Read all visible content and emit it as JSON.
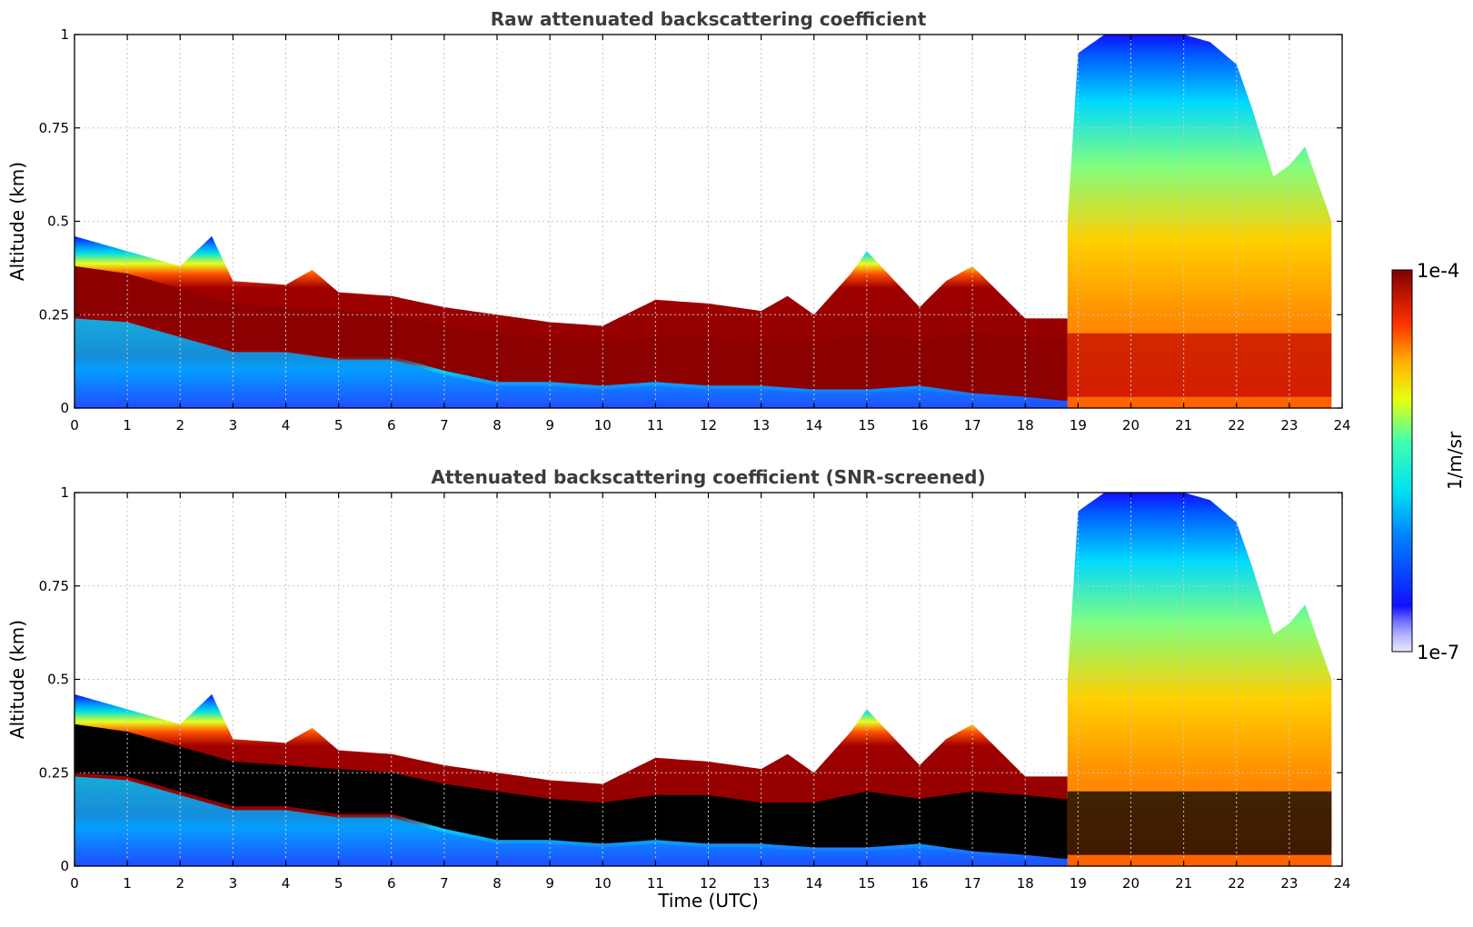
{
  "figure": {
    "colorbar": {
      "max_label": "1e-4",
      "min_label": "1e-7",
      "unit_label": "1/m/sr",
      "colormap": "jet",
      "low_colors": [
        "#e8e8ff",
        "#c8c8ff",
        "#a8a8ff",
        "#8080ff"
      ]
    }
  },
  "chart_data": [
    {
      "type": "heatmap",
      "title": "Raw attenuated backscattering coefficient",
      "xlabel": "",
      "ylabel": "Altitude (km)",
      "xlim": [
        0,
        24
      ],
      "ylim": [
        0,
        1
      ],
      "xticks": [
        "0",
        "1",
        "2",
        "3",
        "4",
        "5",
        "6",
        "7",
        "8",
        "9",
        "10",
        "11",
        "12",
        "13",
        "14",
        "15",
        "16",
        "17",
        "18",
        "19",
        "20",
        "21",
        "22",
        "23",
        "24"
      ],
      "yticks": [
        "0",
        "0.25",
        "0.5",
        "0.75",
        "1"
      ],
      "grid": true,
      "colorscale": "log10 1/m/sr, 1e-7 to 1e-4",
      "boundary_layer_top_km": {
        "time_utc": [
          0,
          0.5,
          1,
          2,
          2.6,
          3,
          4,
          4.5,
          5,
          6,
          7,
          8,
          9,
          10,
          11,
          12,
          13,
          13.5,
          14,
          14.7,
          15,
          16,
          16.5,
          17,
          18,
          18.5
        ],
        "height_km": [
          0.46,
          0.44,
          0.42,
          0.38,
          0.46,
          0.34,
          0.33,
          0.37,
          0.31,
          0.3,
          0.27,
          0.25,
          0.23,
          0.22,
          0.29,
          0.28,
          0.26,
          0.3,
          0.25,
          0.36,
          0.42,
          0.27,
          0.34,
          0.38,
          0.24,
          0.24
        ]
      },
      "strong_layer": {
        "time_utc": [
          0,
          1,
          2,
          3,
          4,
          5,
          6,
          7,
          8,
          9,
          10,
          11,
          12,
          13,
          14,
          15,
          16,
          17,
          18,
          18.7
        ],
        "bottom_km": [
          0.25,
          0.24,
          0.2,
          0.16,
          0.16,
          0.14,
          0.14,
          0.1,
          0.07,
          0.07,
          0.06,
          0.07,
          0.06,
          0.06,
          0.05,
          0.05,
          0.06,
          0.04,
          0.03,
          0.02
        ],
        "top_km": [
          0.38,
          0.36,
          0.32,
          0.28,
          0.27,
          0.26,
          0.25,
          0.22,
          0.2,
          0.18,
          0.17,
          0.19,
          0.19,
          0.17,
          0.17,
          0.2,
          0.18,
          0.2,
          0.19,
          0.18
        ]
      },
      "cloud_region": {
        "time_range_utc": [
          18.8,
          23.8
        ],
        "top_km": {
          "time_utc": [
            18.8,
            19,
            19.5,
            20,
            20.5,
            21,
            21.5,
            22,
            22.3,
            22.7,
            23,
            23.3,
            23.6,
            23.8
          ],
          "height_km": [
            0.5,
            0.95,
            1.0,
            1.0,
            1.0,
            1.0,
            0.98,
            0.92,
            0.8,
            0.62,
            0.65,
            0.7,
            0.58,
            0.5
          ]
        }
      }
    },
    {
      "type": "heatmap",
      "title": "Attenuated backscattering coefficient (SNR-screened)",
      "xlabel": "Time (UTC)",
      "ylabel": "Altitude (km)",
      "xlim": [
        0,
        24
      ],
      "ylim": [
        0,
        1
      ],
      "xticks": [
        "0",
        "1",
        "2",
        "3",
        "4",
        "5",
        "6",
        "7",
        "8",
        "9",
        "10",
        "11",
        "12",
        "13",
        "14",
        "15",
        "16",
        "17",
        "18",
        "19",
        "20",
        "21",
        "22",
        "23",
        "24"
      ],
      "yticks": [
        "0",
        "0.25",
        "0.5",
        "0.75",
        "1"
      ],
      "grid": true,
      "colorscale": "log10 1/m/sr, 1e-7 to 1e-4",
      "screened_color": "#000000",
      "boundary_layer_top_km": {
        "time_utc": [
          0,
          0.5,
          1,
          2,
          2.6,
          3,
          4,
          4.5,
          5,
          6,
          7,
          8,
          9,
          10,
          11,
          12,
          13,
          13.5,
          14,
          14.7,
          15,
          16,
          16.5,
          17,
          18,
          18.5
        ],
        "height_km": [
          0.46,
          0.44,
          0.42,
          0.38,
          0.46,
          0.34,
          0.33,
          0.37,
          0.31,
          0.3,
          0.27,
          0.25,
          0.23,
          0.22,
          0.29,
          0.28,
          0.26,
          0.3,
          0.25,
          0.36,
          0.42,
          0.27,
          0.34,
          0.38,
          0.24,
          0.24
        ]
      },
      "strong_layer": {
        "time_utc": [
          0,
          1,
          2,
          3,
          4,
          5,
          6,
          7,
          8,
          9,
          10,
          11,
          12,
          13,
          14,
          15,
          16,
          17,
          18,
          18.7
        ],
        "bottom_km": [
          0.25,
          0.24,
          0.2,
          0.16,
          0.16,
          0.14,
          0.14,
          0.1,
          0.07,
          0.07,
          0.06,
          0.07,
          0.06,
          0.06,
          0.05,
          0.05,
          0.06,
          0.04,
          0.03,
          0.02
        ],
        "top_km": [
          0.38,
          0.36,
          0.32,
          0.28,
          0.27,
          0.26,
          0.25,
          0.22,
          0.2,
          0.18,
          0.17,
          0.19,
          0.19,
          0.17,
          0.17,
          0.2,
          0.18,
          0.2,
          0.19,
          0.18
        ]
      },
      "cloud_region": {
        "time_range_utc": [
          18.8,
          23.8
        ],
        "top_km": {
          "time_utc": [
            18.8,
            19,
            19.5,
            20,
            20.5,
            21,
            21.5,
            22,
            22.3,
            22.7,
            23,
            23.3,
            23.6,
            23.8
          ],
          "height_km": [
            0.5,
            0.95,
            1.0,
            1.0,
            1.0,
            1.0,
            0.98,
            0.92,
            0.8,
            0.62,
            0.65,
            0.7,
            0.58,
            0.5
          ]
        }
      }
    }
  ]
}
